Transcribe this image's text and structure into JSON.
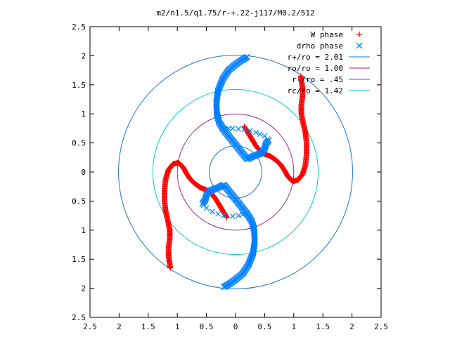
{
  "chart_data": {
    "type": "scatter",
    "title": "m2/n1.5/q1.75/r-+.22-j117/M0.2/512",
    "xlabel": "",
    "ylabel": "",
    "xlim": [
      -2.5,
      2.5
    ],
    "ylim": [
      -2.5,
      2.5
    ],
    "grid": false,
    "legend_position": "top-right",
    "x_tick_labels": [
      "2.5",
      "2",
      "1.5",
      "1",
      "0.5",
      "0",
      "0.5",
      "1",
      "1.5",
      "2",
      "2.5"
    ],
    "y_tick_labels": [
      "2.5",
      "2",
      "1.5",
      "1",
      "0.5",
      "0",
      "0.5",
      "1",
      "1.5",
      "2",
      "2.5"
    ],
    "x_ticks": [
      -2.5,
      -2,
      -1.5,
      -1,
      -0.5,
      0,
      0.5,
      1,
      1.5,
      2,
      2.5
    ],
    "y_ticks": [
      2.5,
      2,
      1.5,
      1,
      0.5,
      0,
      -0.5,
      -1,
      -1.5,
      -2,
      -2.5
    ],
    "series": [
      {
        "name": "W phase",
        "marker": "plus",
        "color": "#ff0000",
        "arms": [
          [
            [
              0.15,
              0.78
            ],
            [
              0.35,
              0.45
            ],
            [
              0.45,
              0.33
            ],
            [
              0.52,
              0.3
            ],
            [
              0.6,
              0.27
            ],
            [
              0.7,
              0.2
            ],
            [
              0.78,
              0.12
            ],
            [
              0.84,
              0.03
            ],
            [
              0.9,
              -0.08
            ],
            [
              0.98,
              -0.16
            ],
            [
              1.07,
              -0.14
            ],
            [
              1.15,
              -0.04
            ],
            [
              1.2,
              0.12
            ],
            [
              1.22,
              0.3
            ],
            [
              1.22,
              0.5
            ],
            [
              1.2,
              0.68
            ],
            [
              1.16,
              0.85
            ],
            [
              1.13,
              1.0
            ],
            [
              1.13,
              1.15
            ],
            [
              1.15,
              1.3
            ],
            [
              1.15,
              1.45
            ],
            [
              1.13,
              1.58
            ],
            [
              1.12,
              1.65
            ]
          ],
          [
            [
              -0.15,
              -0.78
            ],
            [
              -0.35,
              -0.45
            ],
            [
              -0.45,
              -0.33
            ],
            [
              -0.52,
              -0.3
            ],
            [
              -0.6,
              -0.27
            ],
            [
              -0.7,
              -0.2
            ],
            [
              -0.78,
              -0.12
            ],
            [
              -0.84,
              -0.03
            ],
            [
              -0.9,
              0.08
            ],
            [
              -0.98,
              0.16
            ],
            [
              -1.07,
              0.14
            ],
            [
              -1.15,
              0.04
            ],
            [
              -1.2,
              -0.12
            ],
            [
              -1.22,
              -0.3
            ],
            [
              -1.22,
              -0.5
            ],
            [
              -1.2,
              -0.68
            ],
            [
              -1.16,
              -0.85
            ],
            [
              -1.13,
              -1.0
            ],
            [
              -1.13,
              -1.15
            ],
            [
              -1.15,
              -1.3
            ],
            [
              -1.15,
              -1.45
            ],
            [
              -1.13,
              -1.58
            ],
            [
              -1.12,
              -1.65
            ]
          ]
        ]
      },
      {
        "name": "drho phase",
        "marker": "cross",
        "color": "#0080ff",
        "arms": [
          [
            [
              -0.57,
              -0.55
            ],
            [
              -0.52,
              -0.48
            ],
            [
              -0.5,
              -0.4
            ],
            [
              -0.45,
              -0.33
            ],
            [
              -0.38,
              -0.3
            ],
            [
              -0.3,
              -0.27
            ],
            [
              -0.2,
              -0.22
            ],
            [
              0.2,
              -0.72
            ],
            [
              0.28,
              -0.85
            ],
            [
              0.32,
              -1.0
            ],
            [
              0.33,
              -1.2
            ],
            [
              0.3,
              -1.4
            ],
            [
              0.22,
              -1.6
            ],
            [
              0.12,
              -1.75
            ],
            [
              0.0,
              -1.85
            ],
            [
              -0.1,
              -1.92
            ],
            [
              -0.2,
              -1.98
            ]
          ],
          [
            [
              0.57,
              0.55
            ],
            [
              0.52,
              0.48
            ],
            [
              0.5,
              0.4
            ],
            [
              0.45,
              0.33
            ],
            [
              0.38,
              0.3
            ],
            [
              0.3,
              0.27
            ],
            [
              0.2,
              0.22
            ],
            [
              -0.2,
              0.72
            ],
            [
              -0.28,
              0.85
            ],
            [
              -0.32,
              1.0
            ],
            [
              -0.33,
              1.2
            ],
            [
              -0.3,
              1.4
            ],
            [
              -0.22,
              1.6
            ],
            [
              -0.12,
              1.75
            ],
            [
              0.0,
              1.85
            ],
            [
              0.1,
              1.92
            ],
            [
              0.2,
              1.98
            ]
          ]
        ],
        "sparse_points": [
          [
            -0.55,
            -0.57
          ],
          [
            -0.5,
            -0.62
          ],
          [
            -0.4,
            -0.68
          ],
          [
            -0.3,
            -0.72
          ],
          [
            -0.2,
            -0.75
          ],
          [
            -0.05,
            -0.76
          ],
          [
            0.05,
            -0.75
          ],
          [
            0.12,
            -0.73
          ],
          [
            0.18,
            -0.72
          ],
          [
            0.55,
            0.57
          ],
          [
            0.5,
            0.62
          ],
          [
            0.42,
            0.65
          ],
          [
            0.35,
            0.68
          ],
          [
            0.25,
            0.71
          ],
          [
            0.15,
            0.73
          ],
          [
            0.05,
            0.74
          ],
          [
            -0.05,
            0.75
          ],
          [
            -0.12,
            0.75
          ],
          [
            -0.18,
            0.74
          ]
        ]
      },
      {
        "name": "r+/ro = 2.01",
        "type": "circle",
        "radius": 2.01,
        "color": "#1874cd"
      },
      {
        "name": "ro/ro = 1.00",
        "type": "circle",
        "radius": 1.0,
        "color": "#a020a0"
      },
      {
        "name": "r-/ro = .45",
        "type": "circle",
        "radius": 0.45,
        "color": "#1874cd"
      },
      {
        "name": "rc/ro = 1.42",
        "type": "circle",
        "radius": 1.42,
        "color": "#00cdcd"
      }
    ]
  }
}
